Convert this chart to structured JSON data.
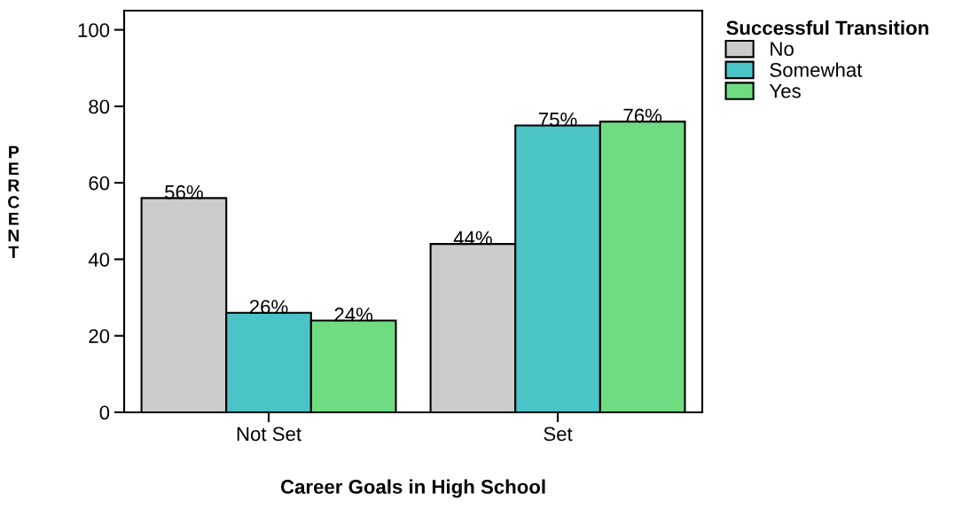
{
  "chart_data": {
    "type": "bar",
    "xlabel": "Career Goals in High School",
    "ylabel": "PERCENT",
    "legend_title": "Successful Transition",
    "categories": [
      "Not Set",
      "Set"
    ],
    "series": [
      {
        "name": "No",
        "color": "#cccccc",
        "values": [
          56,
          44
        ],
        "value_labels": [
          "56%",
          "44%"
        ]
      },
      {
        "name": "Somewhat",
        "color": "#4bc4c8",
        "values": [
          26,
          75
        ],
        "value_labels": [
          "26%",
          "75%"
        ]
      },
      {
        "name": "Yes",
        "color": "#70dc82",
        "values": [
          24,
          76
        ],
        "value_labels": [
          "24%",
          "76%"
        ]
      }
    ],
    "ylim": [
      0,
      105
    ],
    "yticks": [
      0,
      20,
      40,
      60,
      80,
      100
    ],
    "grid": false,
    "legend": "top right"
  }
}
